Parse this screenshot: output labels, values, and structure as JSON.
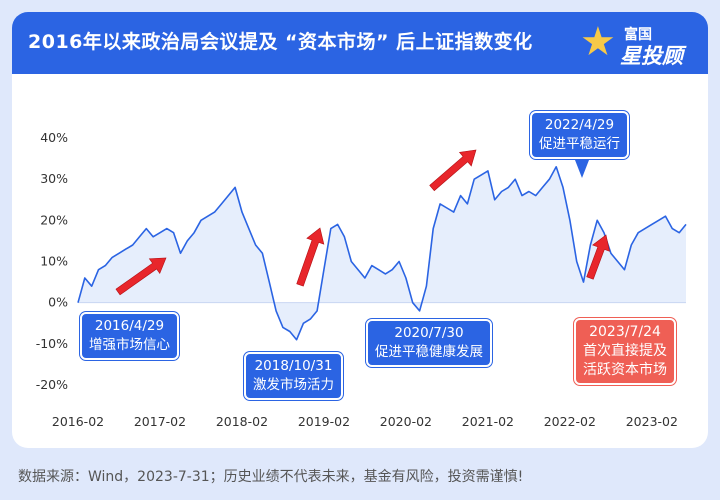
{
  "title": "2016年以来政治局会议提及 “资本市场” 后上证指数变化",
  "logo": {
    "top": "富国",
    "bottom": "星投顾"
  },
  "footnote": "数据来源：Wind，2023-7-31；历史业绩不代表未来，基金有风险，投资需谨慎!",
  "annotations": [
    {
      "date": "2016/4/29",
      "text": "增强市场信心"
    },
    {
      "date": "2018/10/31",
      "text": "激发市场活力"
    },
    {
      "date": "2020/7/30",
      "text": "促进平稳健康发展"
    },
    {
      "date": "2022/4/29",
      "text": "促进平稳运行"
    },
    {
      "date": "2023/7/24",
      "text": "首次直接提及",
      "text2": "活跃资本市场"
    }
  ],
  "colors": {
    "header": "#2b64e3",
    "line": "#2b64e3",
    "area": "#e6eefc",
    "arrow": "#e8262b",
    "red_box": "#ef5f55"
  },
  "chart_data": {
    "type": "area",
    "title": "",
    "ylabel": "",
    "ylim": [
      -20,
      40
    ],
    "yticks": [
      "40%",
      "30%",
      "20%",
      "10%",
      "0%",
      "-10%",
      "-20%"
    ],
    "xticks": [
      "2016-02",
      "2017-02",
      "2018-02",
      "2019-02",
      "2020-02",
      "2021-02",
      "2022-02",
      "2023-02"
    ],
    "x": [
      "2016-02",
      "2016-03",
      "2016-04",
      "2016-05",
      "2016-06",
      "2016-07",
      "2016-08",
      "2016-09",
      "2016-10",
      "2016-11",
      "2016-12",
      "2017-01",
      "2017-02",
      "2017-03",
      "2017-04",
      "2017-05",
      "2017-06",
      "2017-07",
      "2017-08",
      "2017-09",
      "2017-10",
      "2017-11",
      "2017-12",
      "2018-01",
      "2018-02",
      "2018-03",
      "2018-04",
      "2018-05",
      "2018-06",
      "2018-07",
      "2018-08",
      "2018-09",
      "2018-10",
      "2018-11",
      "2018-12",
      "2019-01",
      "2019-02",
      "2019-03",
      "2019-04",
      "2019-05",
      "2019-06",
      "2019-07",
      "2019-08",
      "2019-09",
      "2019-10",
      "2019-11",
      "2019-12",
      "2020-01",
      "2020-02",
      "2020-03",
      "2020-04",
      "2020-05",
      "2020-06",
      "2020-07",
      "2020-08",
      "2020-09",
      "2020-10",
      "2020-11",
      "2020-12",
      "2021-01",
      "2021-02",
      "2021-03",
      "2021-04",
      "2021-05",
      "2021-06",
      "2021-07",
      "2021-08",
      "2021-09",
      "2021-10",
      "2021-11",
      "2021-12",
      "2022-01",
      "2022-02",
      "2022-03",
      "2022-04",
      "2022-05",
      "2022-06",
      "2022-07",
      "2022-08",
      "2022-09",
      "2022-10",
      "2022-11",
      "2022-12",
      "2023-01",
      "2023-02",
      "2023-03",
      "2023-04",
      "2023-05",
      "2023-06",
      "2023-07"
    ],
    "values": [
      0,
      6,
      4,
      8,
      9,
      11,
      12,
      13,
      14,
      16,
      18,
      16,
      17,
      18,
      17,
      12,
      15,
      17,
      20,
      21,
      22,
      24,
      26,
      28,
      22,
      18,
      14,
      12,
      5,
      -2,
      -6,
      -7,
      -9,
      -5,
      -4,
      -2,
      8,
      18,
      19,
      16,
      10,
      8,
      6,
      9,
      8,
      7,
      8,
      10,
      6,
      0,
      -2,
      4,
      18,
      24,
      23,
      22,
      26,
      24,
      30,
      31,
      32,
      25,
      27,
      28,
      30,
      26,
      27,
      26,
      28,
      30,
      33,
      28,
      20,
      10,
      5,
      14,
      20,
      17,
      12,
      10,
      8,
      14,
      17,
      18,
      19,
      20,
      21,
      18,
      17,
      19
    ]
  }
}
